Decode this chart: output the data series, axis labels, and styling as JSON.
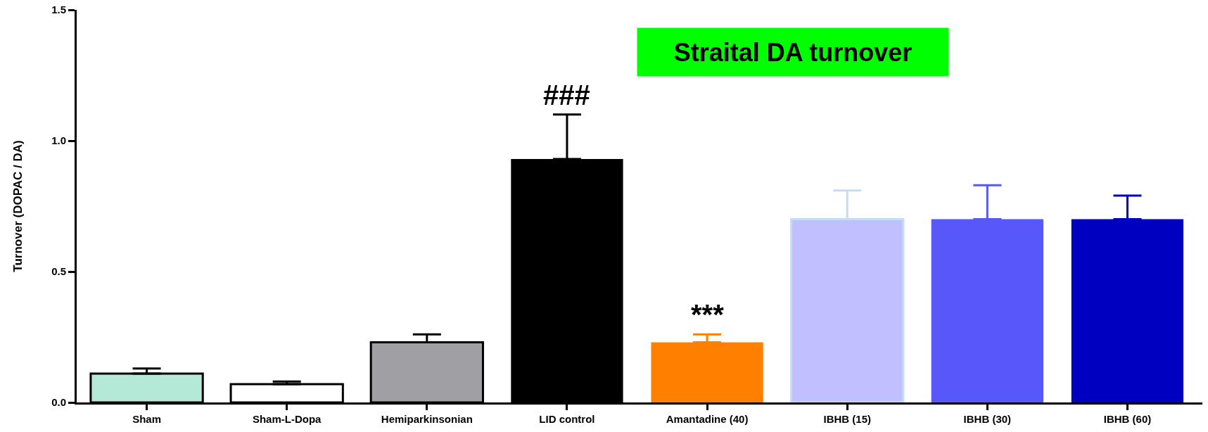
{
  "chart_data": {
    "type": "bar",
    "title": "Straital DA turnover",
    "ylabel": "Turnover (DOPAC / DA)",
    "categories": [
      "Sham",
      "Sham-L-Dopa",
      "Hemiparkinsonian",
      "LID control",
      "Amantadine (40)",
      "IBHB (15)",
      "IBHB (30)",
      "IBHB (60)"
    ],
    "values": [
      0.11,
      0.07,
      0.23,
      0.93,
      0.23,
      0.7,
      0.7,
      0.7
    ],
    "colors": [
      "#b3e9d6",
      "#ffffff",
      "#a09fa4",
      "#000000",
      "#ff8000",
      "#c0c0ff",
      "#5757fa",
      "#0000c0"
    ],
    "errors": [
      [
        0.11,
        0.13
      ],
      [
        0.07,
        0.08
      ],
      [
        0.23,
        0.26
      ],
      [
        0.93,
        1.1
      ],
      [
        0.23,
        0.26
      ],
      [
        0.7,
        0.81
      ],
      [
        0.7,
        0.83
      ],
      [
        0.7,
        0.79
      ]
    ],
    "ylim": [
      0,
      1.5
    ],
    "yticks": [
      {
        "value": 0,
        "label": "0.0"
      },
      0.5,
      {
        "value": 1,
        "label": "1.0"
      },
      1.5
    ],
    "annotations": [
      {
        "text": "###",
        "x": "LID control",
        "y": 1.1
      },
      {
        "text": "***",
        "x": "Amantadine (40)",
        "y": 0.26
      }
    ]
  }
}
